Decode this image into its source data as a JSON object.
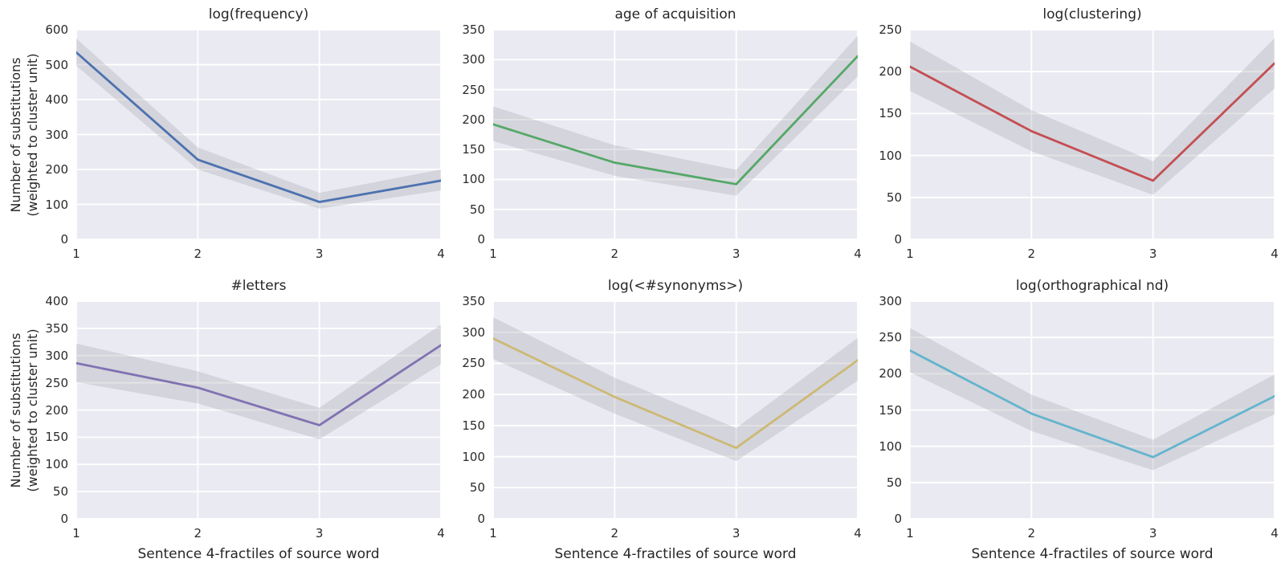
{
  "figure": {
    "background": "#ffffff",
    "panel_background": "#eaeaf2",
    "grid_color": "#ffffff",
    "band_color": "#9a9aa6",
    "band_opacity": 0.28,
    "text_color": "#262626"
  },
  "axes": {
    "xlabel": "Sentence 4-fractiles of source word",
    "ylabel_line1": "Number of substitutions",
    "ylabel_line2": "(weighted to cluster unit)"
  },
  "chart_data": [
    {
      "type": "line",
      "title": "log(frequency)",
      "x": [
        1,
        2,
        3,
        4
      ],
      "y": [
        535,
        228,
        107,
        168
      ],
      "ci_lower": [
        497,
        200,
        88,
        140
      ],
      "ci_upper": [
        575,
        263,
        133,
        200
      ],
      "color": "#4c72b0",
      "ylim": [
        0,
        600
      ],
      "yticks": [
        0,
        100,
        200,
        300,
        400,
        500,
        600
      ],
      "xticks": [
        1,
        2,
        3,
        4
      ],
      "ylabel": [
        "Number of substitutions",
        "(weighted to cluster unit)"
      ],
      "grid": true
    },
    {
      "type": "line",
      "title": "age of acquisition",
      "x": [
        1,
        2,
        3,
        4
      ],
      "y": [
        192,
        128,
        92,
        306
      ],
      "ci_lower": [
        164,
        106,
        73,
        272
      ],
      "ci_upper": [
        222,
        157,
        116,
        340
      ],
      "color": "#55a868",
      "ylim": [
        0,
        350
      ],
      "yticks": [
        0,
        50,
        100,
        150,
        200,
        250,
        300,
        350
      ],
      "xticks": [
        1,
        2,
        3,
        4
      ],
      "grid": true
    },
    {
      "type": "line",
      "title": "log(clustering)",
      "x": [
        1,
        2,
        3,
        4
      ],
      "y": [
        206,
        129,
        70,
        210
      ],
      "ci_lower": [
        177,
        105,
        53,
        180
      ],
      "ci_upper": [
        236,
        154,
        93,
        240
      ],
      "color": "#c44e52",
      "ylim": [
        0,
        250
      ],
      "yticks": [
        0,
        50,
        100,
        150,
        200,
        250
      ],
      "xticks": [
        1,
        2,
        3,
        4
      ],
      "grid": true
    },
    {
      "type": "line",
      "title": "#letters",
      "x": [
        1,
        2,
        3,
        4
      ],
      "y": [
        286,
        241,
        172,
        319
      ],
      "ci_lower": [
        251,
        212,
        146,
        284
      ],
      "ci_upper": [
        322,
        271,
        204,
        357
      ],
      "color": "#8172b2",
      "ylim": [
        0,
        400
      ],
      "yticks": [
        0,
        50,
        100,
        150,
        200,
        250,
        300,
        350,
        400
      ],
      "xticks": [
        1,
        2,
        3,
        4
      ],
      "xlabel": "Sentence 4-fractiles of source word",
      "ylabel": [
        "Number of substitutions",
        "(weighted to cluster unit)"
      ],
      "grid": true
    },
    {
      "type": "line",
      "title": "log(<#synonyms>)",
      "x": [
        1,
        2,
        3,
        4
      ],
      "y": [
        290,
        196,
        114,
        255
      ],
      "ci_lower": [
        257,
        169,
        93,
        222
      ],
      "ci_upper": [
        324,
        227,
        146,
        291
      ],
      "color": "#ccb974",
      "ylim": [
        0,
        350
      ],
      "yticks": [
        0,
        50,
        100,
        150,
        200,
        250,
        300,
        350
      ],
      "xticks": [
        1,
        2,
        3,
        4
      ],
      "xlabel": "Sentence 4-fractiles of source word",
      "grid": true
    },
    {
      "type": "line",
      "title": "log(orthographical nd)",
      "x": [
        1,
        2,
        3,
        4
      ],
      "y": [
        232,
        145,
        85,
        169
      ],
      "ci_lower": [
        202,
        121,
        67,
        144
      ],
      "ci_upper": [
        263,
        171,
        109,
        199
      ],
      "color": "#64b5cd",
      "ylim": [
        0,
        300
      ],
      "yticks": [
        0,
        50,
        100,
        150,
        200,
        250,
        300
      ],
      "xticks": [
        1,
        2,
        3,
        4
      ],
      "xlabel": "Sentence 4-fractiles of source word",
      "grid": true
    }
  ]
}
